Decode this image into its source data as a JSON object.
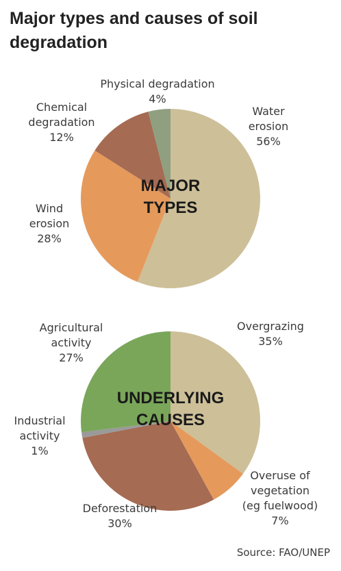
{
  "title_line1": "Major types and causes of soil",
  "title_line2": "degradation",
  "source": "Source: FAO/UNEP",
  "chart_data": [
    {
      "type": "pie",
      "center_label": [
        "MAJOR",
        "TYPES"
      ],
      "start_angle_deg": 0,
      "direction": "clockwise",
      "slices": [
        {
          "name_lines": [
            "Water",
            "erosion"
          ],
          "value": 56,
          "value_label": "56%",
          "color": "#cdbf98"
        },
        {
          "name_lines": [
            "Wind",
            "erosion"
          ],
          "value": 28,
          "value_label": "28%",
          "color": "#e59a5c"
        },
        {
          "name_lines": [
            "Chemical",
            "degradation"
          ],
          "value": 12,
          "value_label": "12%",
          "color": "#a56b53"
        },
        {
          "name_lines": [
            "Physical degradation"
          ],
          "value": 4,
          "value_label": "4%",
          "color": "#8f9f80"
        }
      ]
    },
    {
      "type": "pie",
      "center_label": [
        "UNDERLYING",
        "CAUSES"
      ],
      "start_angle_deg": 0,
      "direction": "clockwise",
      "slices": [
        {
          "name_lines": [
            "Overgrazing"
          ],
          "value": 35,
          "value_label": "35%",
          "color": "#cdbf98"
        },
        {
          "name_lines": [
            "Overuse of",
            "vegetation",
            "(eg fuelwood)"
          ],
          "value": 7,
          "value_label": "7%",
          "color": "#e59a5c"
        },
        {
          "name_lines": [
            "Deforestation"
          ],
          "value": 30,
          "value_label": "30%",
          "color": "#a56b53"
        },
        {
          "name_lines": [
            "Industrial",
            "activity"
          ],
          "value": 1,
          "value_label": "1%",
          "color": "#9a9a9a"
        },
        {
          "name_lines": [
            "Agricultural",
            "activity"
          ],
          "value": 27,
          "value_label": "27%",
          "color": "#7aa65a"
        }
      ]
    }
  ]
}
